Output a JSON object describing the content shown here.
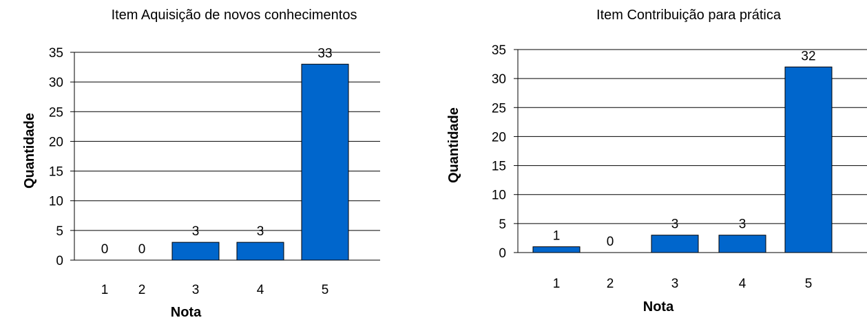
{
  "chart_data": [
    {
      "type": "bar",
      "title": "Item Aquisição de novos conhecimentos",
      "xlabel": "Nota",
      "ylabel": "Quantidade",
      "categories": [
        "1",
        "2",
        "3",
        "4",
        "5"
      ],
      "values": [
        0,
        0,
        3,
        3,
        33
      ],
      "ylim": [
        0,
        35
      ],
      "yticks": [
        "0",
        "5",
        "10",
        "15",
        "20",
        "25",
        "30",
        "35"
      ],
      "grid": true,
      "legend": "none",
      "bar_color": "#0066CC"
    },
    {
      "type": "bar",
      "title": "Item Contribuição para prática",
      "xlabel": "Nota",
      "ylabel": "Quantidade",
      "categories": [
        "1",
        "2",
        "3",
        "4",
        "5"
      ],
      "values": [
        1,
        0,
        3,
        3,
        32
      ],
      "ylim": [
        0,
        35
      ],
      "yticks": [
        "0",
        "5",
        "10",
        "15",
        "20",
        "25",
        "30",
        "35"
      ],
      "grid": true,
      "legend": "none",
      "bar_color": "#0066CC"
    }
  ]
}
